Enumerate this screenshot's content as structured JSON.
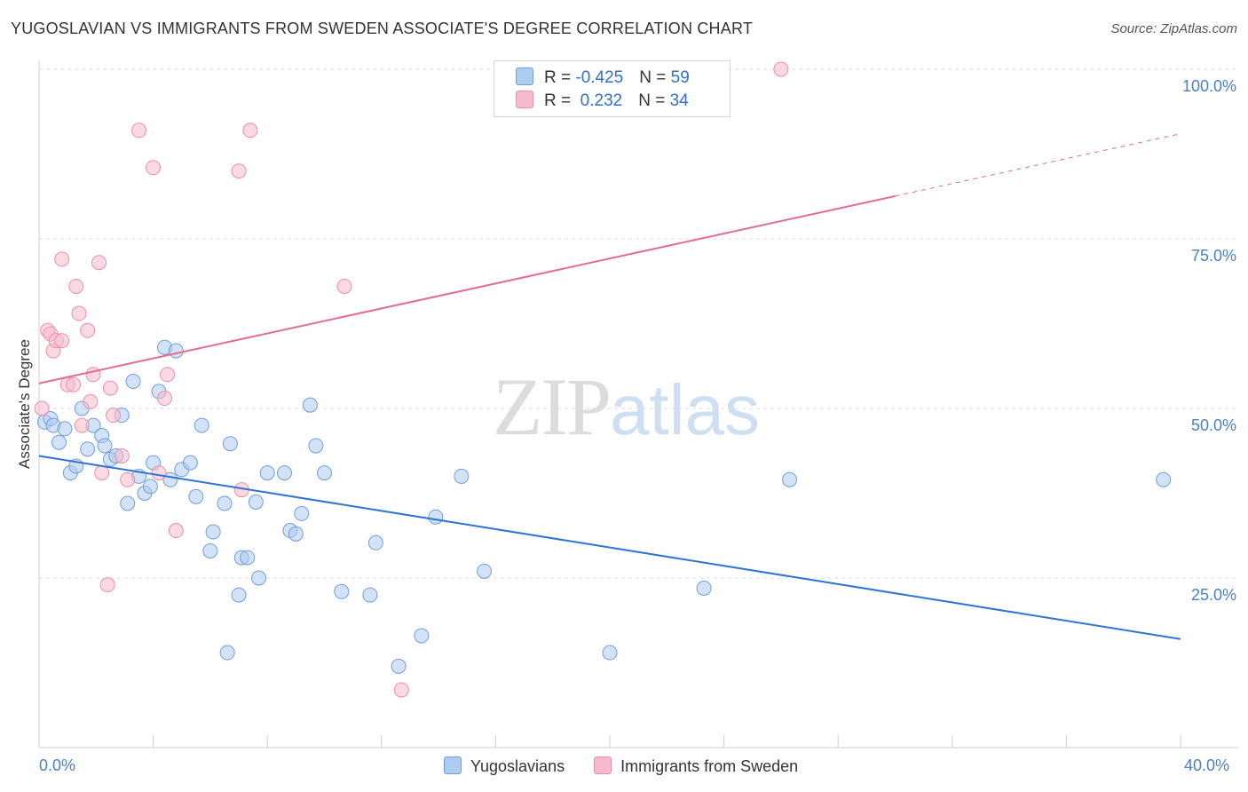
{
  "title": "YUGOSLAVIAN VS IMMIGRANTS FROM SWEDEN ASSOCIATE'S DEGREE CORRELATION CHART",
  "source": "Source: ZipAtlas.com",
  "watermark": {
    "zip": "ZIP",
    "atlas": "atlas"
  },
  "legend": {
    "rows": [
      {
        "r_label": "R = ",
        "r_value": "-0.425",
        "n_label": "N = ",
        "n_value": "59",
        "color": "#aecbf0"
      },
      {
        "r_label": "R = ",
        "r_value": " 0.232",
        "n_label": "N = ",
        "n_value": "34",
        "color": "#f7b9cc"
      }
    ]
  },
  "chart_data": {
    "type": "scatter",
    "title": "YUGOSLAVIAN VS IMMIGRANTS FROM SWEDEN ASSOCIATE'S DEGREE CORRELATION CHART",
    "xlabel": "",
    "ylabel": "Associate's Degree",
    "xlim": [
      0,
      40
    ],
    "ylim": [
      0,
      100
    ],
    "x_tick_labels": [
      "0.0%",
      "40.0%"
    ],
    "y_ticks": [
      25,
      50,
      75,
      100
    ],
    "y_tick_labels": [
      "25.0%",
      "50.0%",
      "75.0%",
      "100.0%"
    ],
    "grid": true,
    "legend_position": "bottom",
    "series": [
      {
        "name": "Yugoslavians",
        "color": "#aecbf0",
        "stroke": "#6f9fd8",
        "line_color": "#2f74d0",
        "trend": {
          "x0": 0,
          "y0": 43.0,
          "x1": 40,
          "y1": 16.0
        },
        "points": [
          [
            0.2,
            48
          ],
          [
            0.4,
            48.5
          ],
          [
            0.5,
            47.5
          ],
          [
            0.7,
            45
          ],
          [
            0.9,
            47
          ],
          [
            1.1,
            40.5
          ],
          [
            1.3,
            41.5
          ],
          [
            1.5,
            50
          ],
          [
            1.7,
            44
          ],
          [
            1.9,
            47.5
          ],
          [
            2.2,
            46
          ],
          [
            2.3,
            44.5
          ],
          [
            2.5,
            42.5
          ],
          [
            2.7,
            43
          ],
          [
            2.9,
            49
          ],
          [
            3.1,
            36
          ],
          [
            3.3,
            54
          ],
          [
            3.5,
            40
          ],
          [
            3.7,
            37.5
          ],
          [
            3.9,
            38.5
          ],
          [
            4.0,
            42
          ],
          [
            4.2,
            52.5
          ],
          [
            4.4,
            59
          ],
          [
            4.6,
            39.5
          ],
          [
            4.8,
            58.5
          ],
          [
            5.0,
            41
          ],
          [
            5.3,
            42
          ],
          [
            5.5,
            37
          ],
          [
            5.7,
            47.5
          ],
          [
            6.0,
            29
          ],
          [
            6.1,
            31.8
          ],
          [
            6.5,
            36
          ],
          [
            6.7,
            44.8
          ],
          [
            7.0,
            22.5
          ],
          [
            7.1,
            28
          ],
          [
            7.3,
            28
          ],
          [
            7.6,
            36.2
          ],
          [
            7.7,
            25
          ],
          [
            8.0,
            40.5
          ],
          [
            8.6,
            40.5
          ],
          [
            8.8,
            32
          ],
          [
            9.0,
            31.5
          ],
          [
            9.2,
            34.5
          ],
          [
            9.5,
            50.5
          ],
          [
            9.7,
            44.5
          ],
          [
            10.0,
            40.5
          ],
          [
            6.6,
            14
          ],
          [
            10.6,
            23
          ],
          [
            11.6,
            22.5
          ],
          [
            11.8,
            30.2
          ],
          [
            12.6,
            12
          ],
          [
            13.4,
            16.5
          ],
          [
            13.9,
            34
          ],
          [
            14.8,
            40
          ],
          [
            15.6,
            26
          ],
          [
            20.0,
            14
          ],
          [
            23.3,
            23.5
          ],
          [
            26.3,
            39.5
          ],
          [
            39.4,
            39.5
          ]
        ]
      },
      {
        "name": "Immigrants from Sweden",
        "color": "#f7b9cc",
        "stroke": "#ea8fab",
        "line_color": "#e36c95",
        "trend": {
          "x0": 0,
          "y0": 53.7,
          "x1": 40,
          "y1": 90.5,
          "solid_until_x": 30
        },
        "points": [
          [
            0.1,
            50
          ],
          [
            0.3,
            61.5
          ],
          [
            0.4,
            61
          ],
          [
            0.5,
            58.5
          ],
          [
            0.6,
            60
          ],
          [
            0.8,
            60
          ],
          [
            0.8,
            72
          ],
          [
            1.0,
            53.5
          ],
          [
            1.2,
            53.5
          ],
          [
            1.3,
            68
          ],
          [
            1.4,
            64
          ],
          [
            1.5,
            47.5
          ],
          [
            1.7,
            61.5
          ],
          [
            1.8,
            51
          ],
          [
            1.9,
            55
          ],
          [
            2.1,
            71.5
          ],
          [
            2.2,
            40.5
          ],
          [
            2.4,
            24
          ],
          [
            2.5,
            53
          ],
          [
            2.6,
            49
          ],
          [
            2.9,
            43
          ],
          [
            3.1,
            39.5
          ],
          [
            3.5,
            91
          ],
          [
            4.0,
            85.5
          ],
          [
            4.2,
            40.5
          ],
          [
            4.4,
            51.5
          ],
          [
            4.5,
            55
          ],
          [
            4.8,
            32
          ],
          [
            7.0,
            85
          ],
          [
            7.1,
            38
          ],
          [
            7.4,
            91
          ],
          [
            10.7,
            68
          ],
          [
            12.7,
            8.5
          ],
          [
            26.0,
            100
          ]
        ]
      }
    ]
  }
}
